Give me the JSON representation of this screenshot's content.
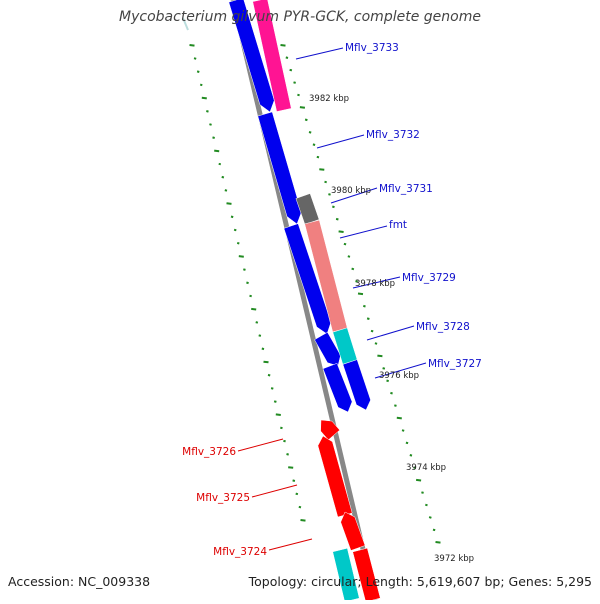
{
  "title": "Mycobacterium gilvum PYR-GCK, complete genome",
  "footer": {
    "accession": "Accession: NC_009338",
    "stats": "Topology: circular; Length: 5,619,607 bp; Genes: 5,295"
  },
  "colors": {
    "blue": "#0000ee",
    "red": "#ff0000",
    "pink": "#ff1493",
    "salmon": "#f08080",
    "cyan": "#00c8c8",
    "gray": "#666666",
    "backbone": "#888888",
    "tick": "#228b22",
    "label_blue": "#1010cc",
    "label_red": "#dd0000"
  },
  "scale_labels": [
    "3982 kbp",
    "3980 kbp",
    "3978 kbp",
    "3976 kbp",
    "3974 kbp",
    "3972 kbp"
  ],
  "gene_labels": [
    {
      "text": "Mflv_3733",
      "color": "blue"
    },
    {
      "text": "Mflv_3732",
      "color": "blue"
    },
    {
      "text": "Mflv_3731",
      "color": "blue"
    },
    {
      "text": "fmt",
      "color": "blue"
    },
    {
      "text": "Mflv_3729",
      "color": "blue"
    },
    {
      "text": "Mflv_3728",
      "color": "blue"
    },
    {
      "text": "Mflv_3727",
      "color": "blue"
    },
    {
      "text": "Mflv_3726",
      "color": "red"
    },
    {
      "text": "Mflv_3725",
      "color": "red"
    },
    {
      "text": "Mflv_3724",
      "color": "red"
    }
  ]
}
